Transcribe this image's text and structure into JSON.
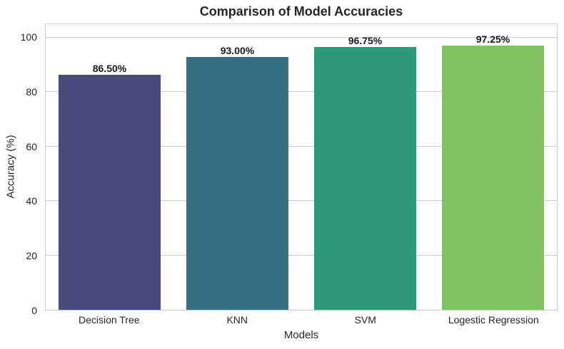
{
  "chart_data": {
    "type": "bar",
    "title": "Comparison of Model Accuracies",
    "xlabel": "Models",
    "ylabel": "Accuracy (%)",
    "categories": [
      "Decision Tree",
      "KNN",
      "SVM",
      "Logestic Regression"
    ],
    "values": [
      86.5,
      93.0,
      96.75,
      97.25
    ],
    "value_labels": [
      "86.50%",
      "93.00%",
      "96.75%",
      "97.25%"
    ],
    "bar_colors": [
      "#4a4b7c",
      "#367082",
      "#2f9879",
      "#80c363"
    ],
    "yticks": [
      0,
      20,
      40,
      60,
      80,
      100
    ],
    "ylim": [
      0,
      105
    ],
    "bar_width_fraction": 0.8,
    "grid": "horizontal",
    "legend": "none",
    "styles": {
      "grid_color": "#cccccc",
      "spine_color": "#cccccc",
      "text_color": "#262626",
      "value_label_color": "#1a1a1a",
      "background": "#ffffff"
    }
  }
}
